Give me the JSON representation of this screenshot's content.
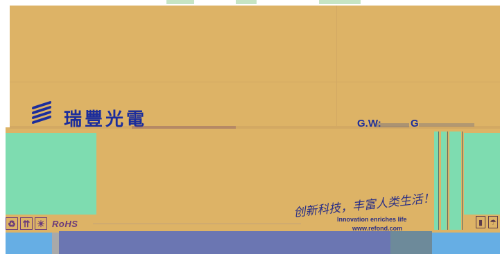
{
  "logo": {
    "text": "瑞豐光電",
    "icon": "globe-stripes-icon",
    "color": "#1b2d9c"
  },
  "weights": {
    "gw_label": "G.W:",
    "g_label": "G"
  },
  "compliance": {
    "icons": [
      "recycle-icon",
      "this-way-up-icon",
      "keep-away-from-sun-icon"
    ],
    "rohs_label": "RoHS"
  },
  "slogan": {
    "chinese": "创新科技，丰富人类生活！",
    "english": "Innovation enriches life",
    "url": "www.refond.com"
  },
  "colors": {
    "tan": "#ddb366",
    "green": "#7edcb0",
    "blue": "#66aee4",
    "purple": "#6b76b2",
    "navy": "#1b2d9c"
  }
}
